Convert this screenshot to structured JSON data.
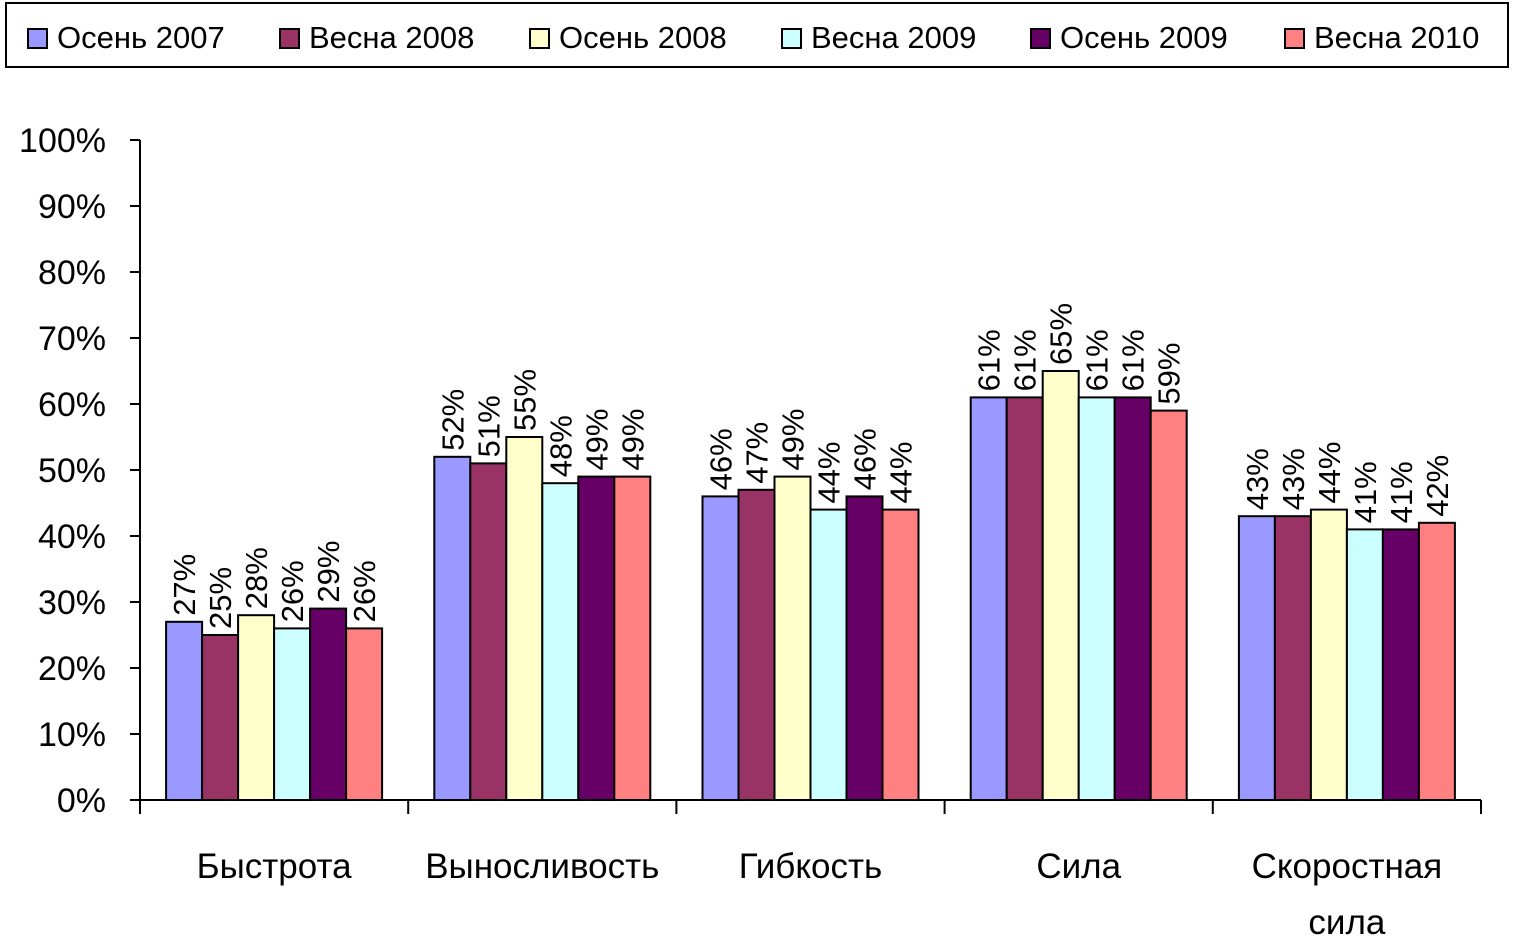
{
  "chart_data": {
    "type": "bar",
    "categories": [
      "Быстрота",
      "Выносливость",
      "Гибкость",
      "Сила",
      "Скоростная сила"
    ],
    "series": [
      {
        "name": "Осень 2007",
        "color": "#9999ff",
        "values": [
          27,
          52,
          46,
          61,
          43
        ]
      },
      {
        "name": "Весна 2008",
        "color": "#993366",
        "values": [
          25,
          51,
          47,
          61,
          43
        ]
      },
      {
        "name": "Осень 2008",
        "color": "#ffffcc",
        "values": [
          28,
          55,
          49,
          65,
          44
        ]
      },
      {
        "name": "Весна 2009",
        "color": "#ccffff",
        "values": [
          26,
          48,
          44,
          61,
          41
        ]
      },
      {
        "name": "Осень 2009",
        "color": "#660066",
        "values": [
          29,
          49,
          46,
          61,
          41
        ]
      },
      {
        "name": "Весна 2010",
        "color": "#ff8080",
        "values": [
          26,
          49,
          44,
          59,
          42
        ]
      }
    ],
    "ylim": [
      0,
      100
    ],
    "yticks": [
      "0%",
      "10%",
      "20%",
      "30%",
      "40%",
      "50%",
      "60%",
      "70%",
      "80%",
      "90%",
      "100%"
    ],
    "value_suffix": "%",
    "legend_position": "top",
    "grid": false
  }
}
